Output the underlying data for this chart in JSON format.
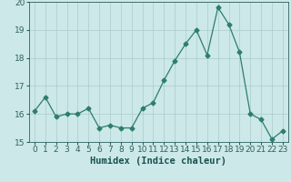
{
  "x": [
    0,
    1,
    2,
    3,
    4,
    5,
    6,
    7,
    8,
    9,
    10,
    11,
    12,
    13,
    14,
    15,
    16,
    17,
    18,
    19,
    20,
    21,
    22,
    23
  ],
  "y": [
    16.1,
    16.6,
    15.9,
    16.0,
    16.0,
    16.2,
    15.5,
    15.6,
    15.5,
    15.5,
    16.2,
    16.4,
    17.2,
    17.9,
    18.5,
    19.0,
    18.1,
    19.8,
    19.2,
    18.2,
    16.0,
    15.8,
    15.1,
    15.4
  ],
  "line_color": "#2e7d6e",
  "marker": "D",
  "marker_size": 2.5,
  "bg_color": "#cce8e8",
  "grid_color": "#aacccc",
  "xlabel": "Humidex (Indice chaleur)",
  "xlim": [
    -0.5,
    23.5
  ],
  "ylim": [
    15.0,
    20.0
  ],
  "xticks": [
    0,
    1,
    2,
    3,
    4,
    5,
    6,
    7,
    8,
    9,
    10,
    11,
    12,
    13,
    14,
    15,
    16,
    17,
    18,
    19,
    20,
    21,
    22,
    23
  ],
  "yticks": [
    15,
    16,
    17,
    18,
    19,
    20
  ],
  "tick_color": "#2e6060",
  "label_color": "#1a5050",
  "xlabel_fontsize": 7.5,
  "tick_fontsize": 6.5
}
